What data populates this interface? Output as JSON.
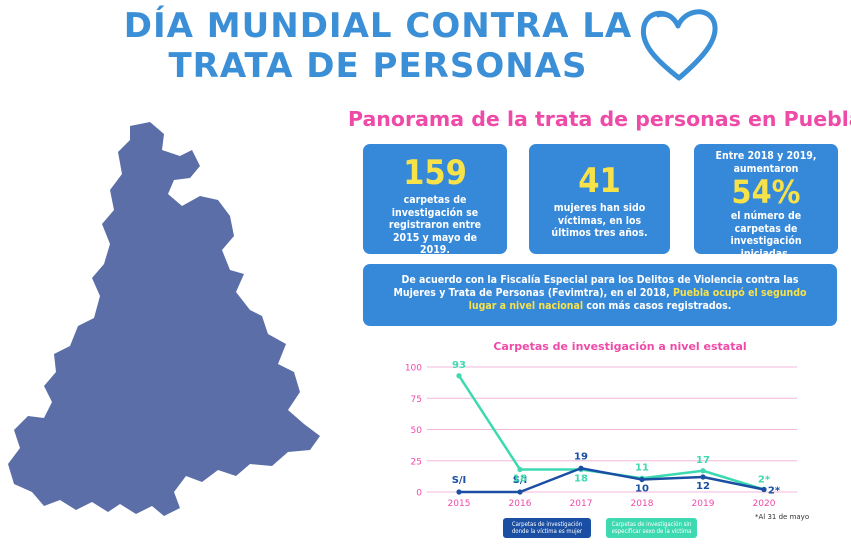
{
  "header": {
    "title_line1": "DÍA MUNDIAL CONTRA LA",
    "title_line2": "TRATA DE PERSONAS",
    "heart": "heart-icon"
  },
  "map": {
    "name": "puebla-state-map",
    "color": "#5b6ea8"
  },
  "subtitle": "Panorama de la trata de personas en Puebla*",
  "cards": {
    "c1": {
      "big": "159",
      "text": "carpetas de investigación se registraron entre 2015 y mayo de 2019."
    },
    "c2": {
      "big": "41",
      "text": "mujeres han sido víctimas, en los últimos tres años."
    },
    "c3": {
      "pre": "Entre 2018 y 2019, aumentaron",
      "big": "54%",
      "text": "el número de carpetas de investigación iniciadas."
    },
    "c4": {
      "part1": "De acuerdo con la Fiscalía Especial para los Delitos de Violencia contra las Mujeres y Trata de Personas (Fevimtra), en el 2018, ",
      "highlight": "Puebla ocupó el segundo lugar a nivel nacional",
      "part2": " con más casos registrados."
    }
  },
  "colors": {
    "card": "#3688d8",
    "accent_yellow": "#f7e24a",
    "pink": "#ee4aa8",
    "series1": "#1a4fa3",
    "series2": "#3dd9b0"
  },
  "chart_data": {
    "type": "line",
    "title": "Carpetas de investigación a nivel estatal",
    "categories": [
      "2015",
      "2016",
      "2017",
      "2018",
      "2019",
      "2020"
    ],
    "ylim": [
      0,
      100
    ],
    "yticks": [
      0,
      25,
      50,
      75,
      100
    ],
    "grid": true,
    "legend": "bottom",
    "series": [
      {
        "name": "Carpetas de investigación donde la víctima es mujer",
        "values": [
          0,
          0,
          19,
          10,
          12,
          2
        ],
        "labels": [
          "S/I",
          "S/I",
          "19",
          "10",
          "12",
          "2*"
        ],
        "color": "#1a4fa3"
      },
      {
        "name": "Carpetas de investigación sin especificar sexo de la víctima",
        "values": [
          93,
          18,
          18,
          11,
          17,
          2
        ],
        "labels": [
          "93",
          "18",
          "18",
          "11",
          "17",
          "2*"
        ],
        "color": "#3dd9b0"
      }
    ],
    "footnote": "*Al 31 de mayo"
  }
}
